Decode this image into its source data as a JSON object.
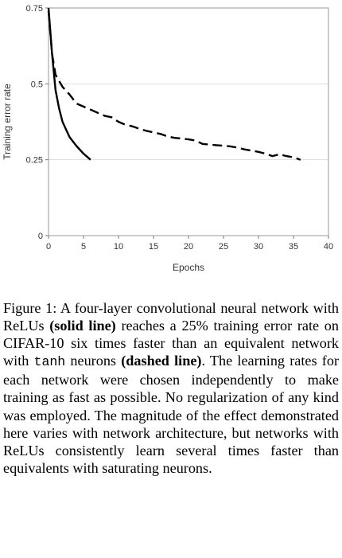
{
  "chart_data": {
    "type": "line",
    "xlabel": "Epochs",
    "ylabel": "Training error rate",
    "xlim": [
      0,
      40
    ],
    "ylim": [
      0,
      0.75
    ],
    "xticks": [
      "0",
      "5",
      "10",
      "15",
      "20",
      "25",
      "30",
      "35",
      "40"
    ],
    "yticks": [
      "0",
      "0.25",
      "0.5",
      "0.75"
    ],
    "grid": "horizontal",
    "legend": "none",
    "series": [
      {
        "style": "solid",
        "color": "#000000",
        "x": [
          0,
          0.5,
          1,
          1.5,
          2,
          3,
          4,
          5,
          6
        ],
        "y": [
          0.75,
          0.6,
          0.48,
          0.42,
          0.375,
          0.325,
          0.295,
          0.27,
          0.25
        ]
      },
      {
        "style": "dashed",
        "color": "#000000",
        "x": [
          0,
          0.5,
          1,
          2,
          3,
          4,
          5,
          6,
          7,
          8,
          9,
          10,
          11,
          12,
          13,
          14,
          15,
          16,
          17,
          18,
          19,
          20,
          21,
          22,
          23,
          24,
          25,
          26,
          27,
          28,
          29,
          30,
          31,
          32,
          33,
          34,
          35,
          36
        ],
        "y": [
          0.74,
          0.6,
          0.53,
          0.49,
          0.465,
          0.435,
          0.425,
          0.415,
          0.405,
          0.395,
          0.39,
          0.375,
          0.365,
          0.36,
          0.352,
          0.345,
          0.34,
          0.335,
          0.327,
          0.322,
          0.32,
          0.317,
          0.313,
          0.302,
          0.3,
          0.298,
          0.296,
          0.294,
          0.29,
          0.284,
          0.28,
          0.276,
          0.27,
          0.262,
          0.268,
          0.262,
          0.258,
          0.25
        ]
      }
    ]
  },
  "caption": {
    "figure_label": "Figure 1:",
    "text_1": " A four-layer convolutional neural network with ReLUs ",
    "bold_1": "(solid line)",
    "text_2": " reaches a 25% training error rate on CIFAR-10 six times faster than an equivalent network with ",
    "mono_1": "tanh",
    "text_3": " neurons ",
    "bold_2": "(dashed line)",
    "text_4": ". The learning rates for each network were chosen independently to make training as fast as possible. No regularization of any kind was employed. The magnitude of the effect demonstrated here varies with network architecture, but networks with ReLUs consistently learn several times faster than equivalents with saturating neurons."
  }
}
